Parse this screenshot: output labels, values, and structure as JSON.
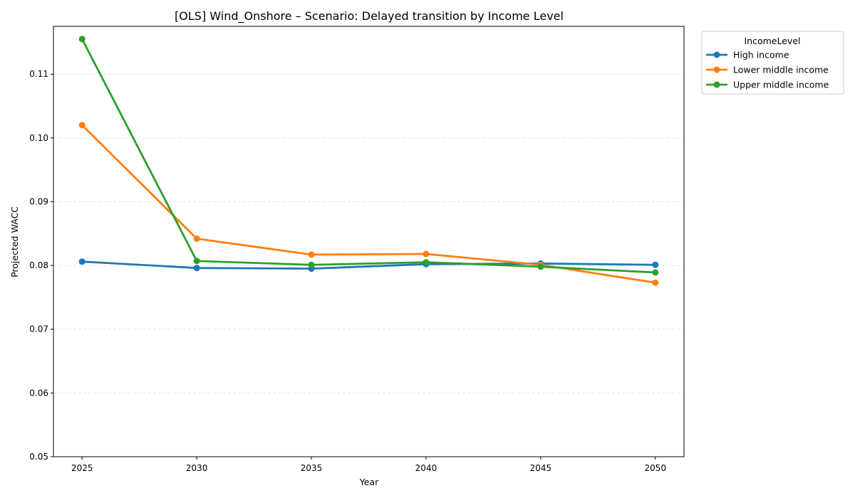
{
  "chart_data": {
    "type": "line",
    "title": "[OLS] Wind_Onshore – Scenario: Delayed transition by Income Level",
    "xlabel": "Year",
    "ylabel": "Projected WACC",
    "x": [
      2025,
      2030,
      2035,
      2040,
      2045,
      2050
    ],
    "xlim": [
      2023.75,
      2051.25
    ],
    "ylim": [
      0.05,
      0.1175
    ],
    "yticks": [
      0.05,
      0.06,
      0.07,
      0.08,
      0.09,
      0.1,
      0.11
    ],
    "ytick_labels": [
      "0.05",
      "0.06",
      "0.07",
      "0.08",
      "0.09",
      "0.10",
      "0.11"
    ],
    "xtick_labels": [
      "2025",
      "2030",
      "2035",
      "2040",
      "2045",
      "2050"
    ],
    "grid": "y-dashed",
    "legend": {
      "title": "IncomeLevel",
      "placement": "outside-top-right"
    },
    "series": [
      {
        "name": "High income",
        "color": "#1f77b4",
        "values": [
          0.0806,
          0.0796,
          0.0795,
          0.0802,
          0.0803,
          0.0801
        ]
      },
      {
        "name": "Lower middle income",
        "color": "#ff7f0e",
        "values": [
          0.102,
          0.0842,
          0.0817,
          0.0818,
          0.0801,
          0.0773
        ]
      },
      {
        "name": "Upper middle income",
        "color": "#2ca02c",
        "values": [
          0.1155,
          0.0807,
          0.0801,
          0.0805,
          0.0798,
          0.0789
        ]
      }
    ]
  }
}
